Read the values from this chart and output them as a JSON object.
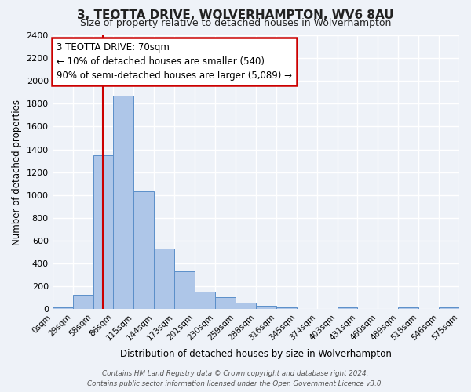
{
  "title": "3, TEOTTA DRIVE, WOLVERHAMPTON, WV6 8AU",
  "subtitle": "Size of property relative to detached houses in Wolverhampton",
  "xlabel": "Distribution of detached houses by size in Wolverhampton",
  "ylabel": "Number of detached properties",
  "bar_values": [
    15,
    130,
    1350,
    1870,
    1030,
    530,
    330,
    155,
    105,
    60,
    30,
    20,
    5,
    0,
    20,
    0,
    0,
    15,
    0,
    15
  ],
  "bin_labels": [
    "0sqm",
    "29sqm",
    "58sqm",
    "86sqm",
    "115sqm",
    "144sqm",
    "173sqm",
    "201sqm",
    "230sqm",
    "259sqm",
    "288sqm",
    "316sqm",
    "345sqm",
    "374sqm",
    "403sqm",
    "431sqm",
    "460sqm",
    "489sqm",
    "518sqm",
    "546sqm",
    "575sqm"
  ],
  "bar_color": "#aec6e8",
  "bar_edge_color": "#5b8fc9",
  "ylim": [
    0,
    2400
  ],
  "yticks": [
    0,
    200,
    400,
    600,
    800,
    1000,
    1200,
    1400,
    1600,
    1800,
    2000,
    2200,
    2400
  ],
  "vline_x": 2.5,
  "vline_color": "#cc0000",
  "annotation_title": "3 TEOTTA DRIVE: 70sqm",
  "annotation_line1": "← 10% of detached houses are smaller (540)",
  "annotation_line2": "90% of semi-detached houses are larger (5,089) →",
  "annotation_box_color": "#cc0000",
  "footer_line1": "Contains HM Land Registry data © Crown copyright and database right 2024.",
  "footer_line2": "Contains public sector information licensed under the Open Government Licence v3.0.",
  "background_color": "#eef2f8",
  "grid_color": "#ffffff"
}
